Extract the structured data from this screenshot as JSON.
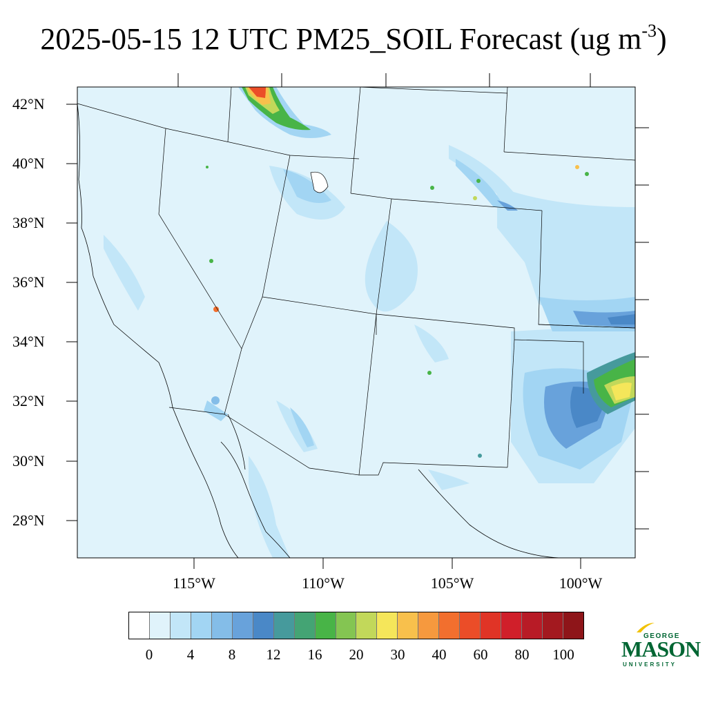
{
  "title": {
    "main": "2025-05-15 12 UTC PM25_SOIL Forecast (ug m",
    "sup": "-3",
    "close": ")"
  },
  "map": {
    "lat_labels": [
      "42°N",
      "40°N",
      "38°N",
      "36°N",
      "34°N",
      "32°N",
      "30°N",
      "28°N"
    ],
    "lon_labels": [
      "115°W",
      "110°W",
      "105°W",
      "100°W"
    ],
    "background_color": "#e0f3fb",
    "border_color": "#000000"
  },
  "colorbar": {
    "colors": [
      "#ffffff",
      "#e0f3fb",
      "#c2e6f8",
      "#a2d5f3",
      "#84bde8",
      "#68a2db",
      "#4a88c7",
      "#469a9c",
      "#44a474",
      "#48b447",
      "#84c552",
      "#c2d85a",
      "#f5e65a",
      "#f8c04c",
      "#f6993e",
      "#f26f2e",
      "#eb4d28",
      "#e03426",
      "#d01f2a",
      "#b81b26",
      "#a3191f",
      "#8e1519"
    ],
    "labels": [
      "0",
      "4",
      "8",
      "12",
      "16",
      "20",
      "30",
      "40",
      "60",
      "80",
      "100"
    ]
  },
  "logo": {
    "george": "GEORGE",
    "mason": "MASON",
    "university": "UNIVERSITY"
  }
}
